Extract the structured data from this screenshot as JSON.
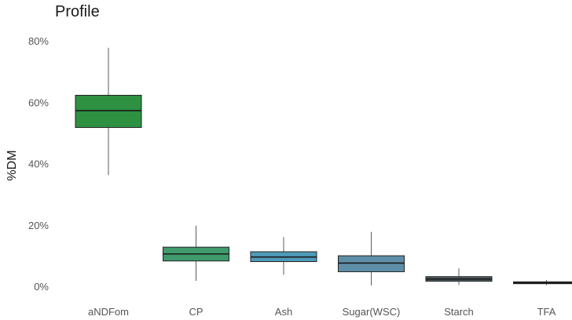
{
  "chart_data": {
    "type": "boxplot",
    "title": "Profile",
    "xlabel": "",
    "ylabel": "%DM",
    "ylim": [
      0,
      80
    ],
    "yticks": [
      0,
      20,
      40,
      60,
      80
    ],
    "ytick_labels": [
      "0%",
      "20%",
      "40%",
      "60%",
      "80%"
    ],
    "grid": false,
    "categories": [
      "aNDFom",
      "CP",
      "Ash",
      "Sugar(WSC)",
      "Starch",
      "TFA"
    ],
    "boxes": [
      {
        "name": "aNDFom",
        "min": 36.5,
        "q1": 52,
        "median": 57.5,
        "q3": 62.5,
        "max": 78,
        "color": "#2e9141"
      },
      {
        "name": "CP",
        "min": 2,
        "q1": 8.5,
        "median": 10.8,
        "q3": 13,
        "max": 20,
        "color": "#3f9a6c"
      },
      {
        "name": "Ash",
        "min": 4,
        "q1": 8.3,
        "median": 9.8,
        "q3": 11.5,
        "max": 16.3,
        "color": "#4e9ab8"
      },
      {
        "name": "Sugar(WSC)",
        "min": 0.5,
        "q1": 5,
        "median": 7.8,
        "q3": 10.2,
        "max": 18,
        "color": "#5f8fa8"
      },
      {
        "name": "Starch",
        "min": 0.7,
        "q1": 1.9,
        "median": 2.6,
        "q3": 3.4,
        "max": 6.1,
        "color": "#4d5a60"
      },
      {
        "name": "TFA",
        "min": 0.6,
        "q1": 1.1,
        "median": 1.4,
        "q3": 1.7,
        "max": 2.3,
        "color": "#3a3f44"
      }
    ]
  }
}
